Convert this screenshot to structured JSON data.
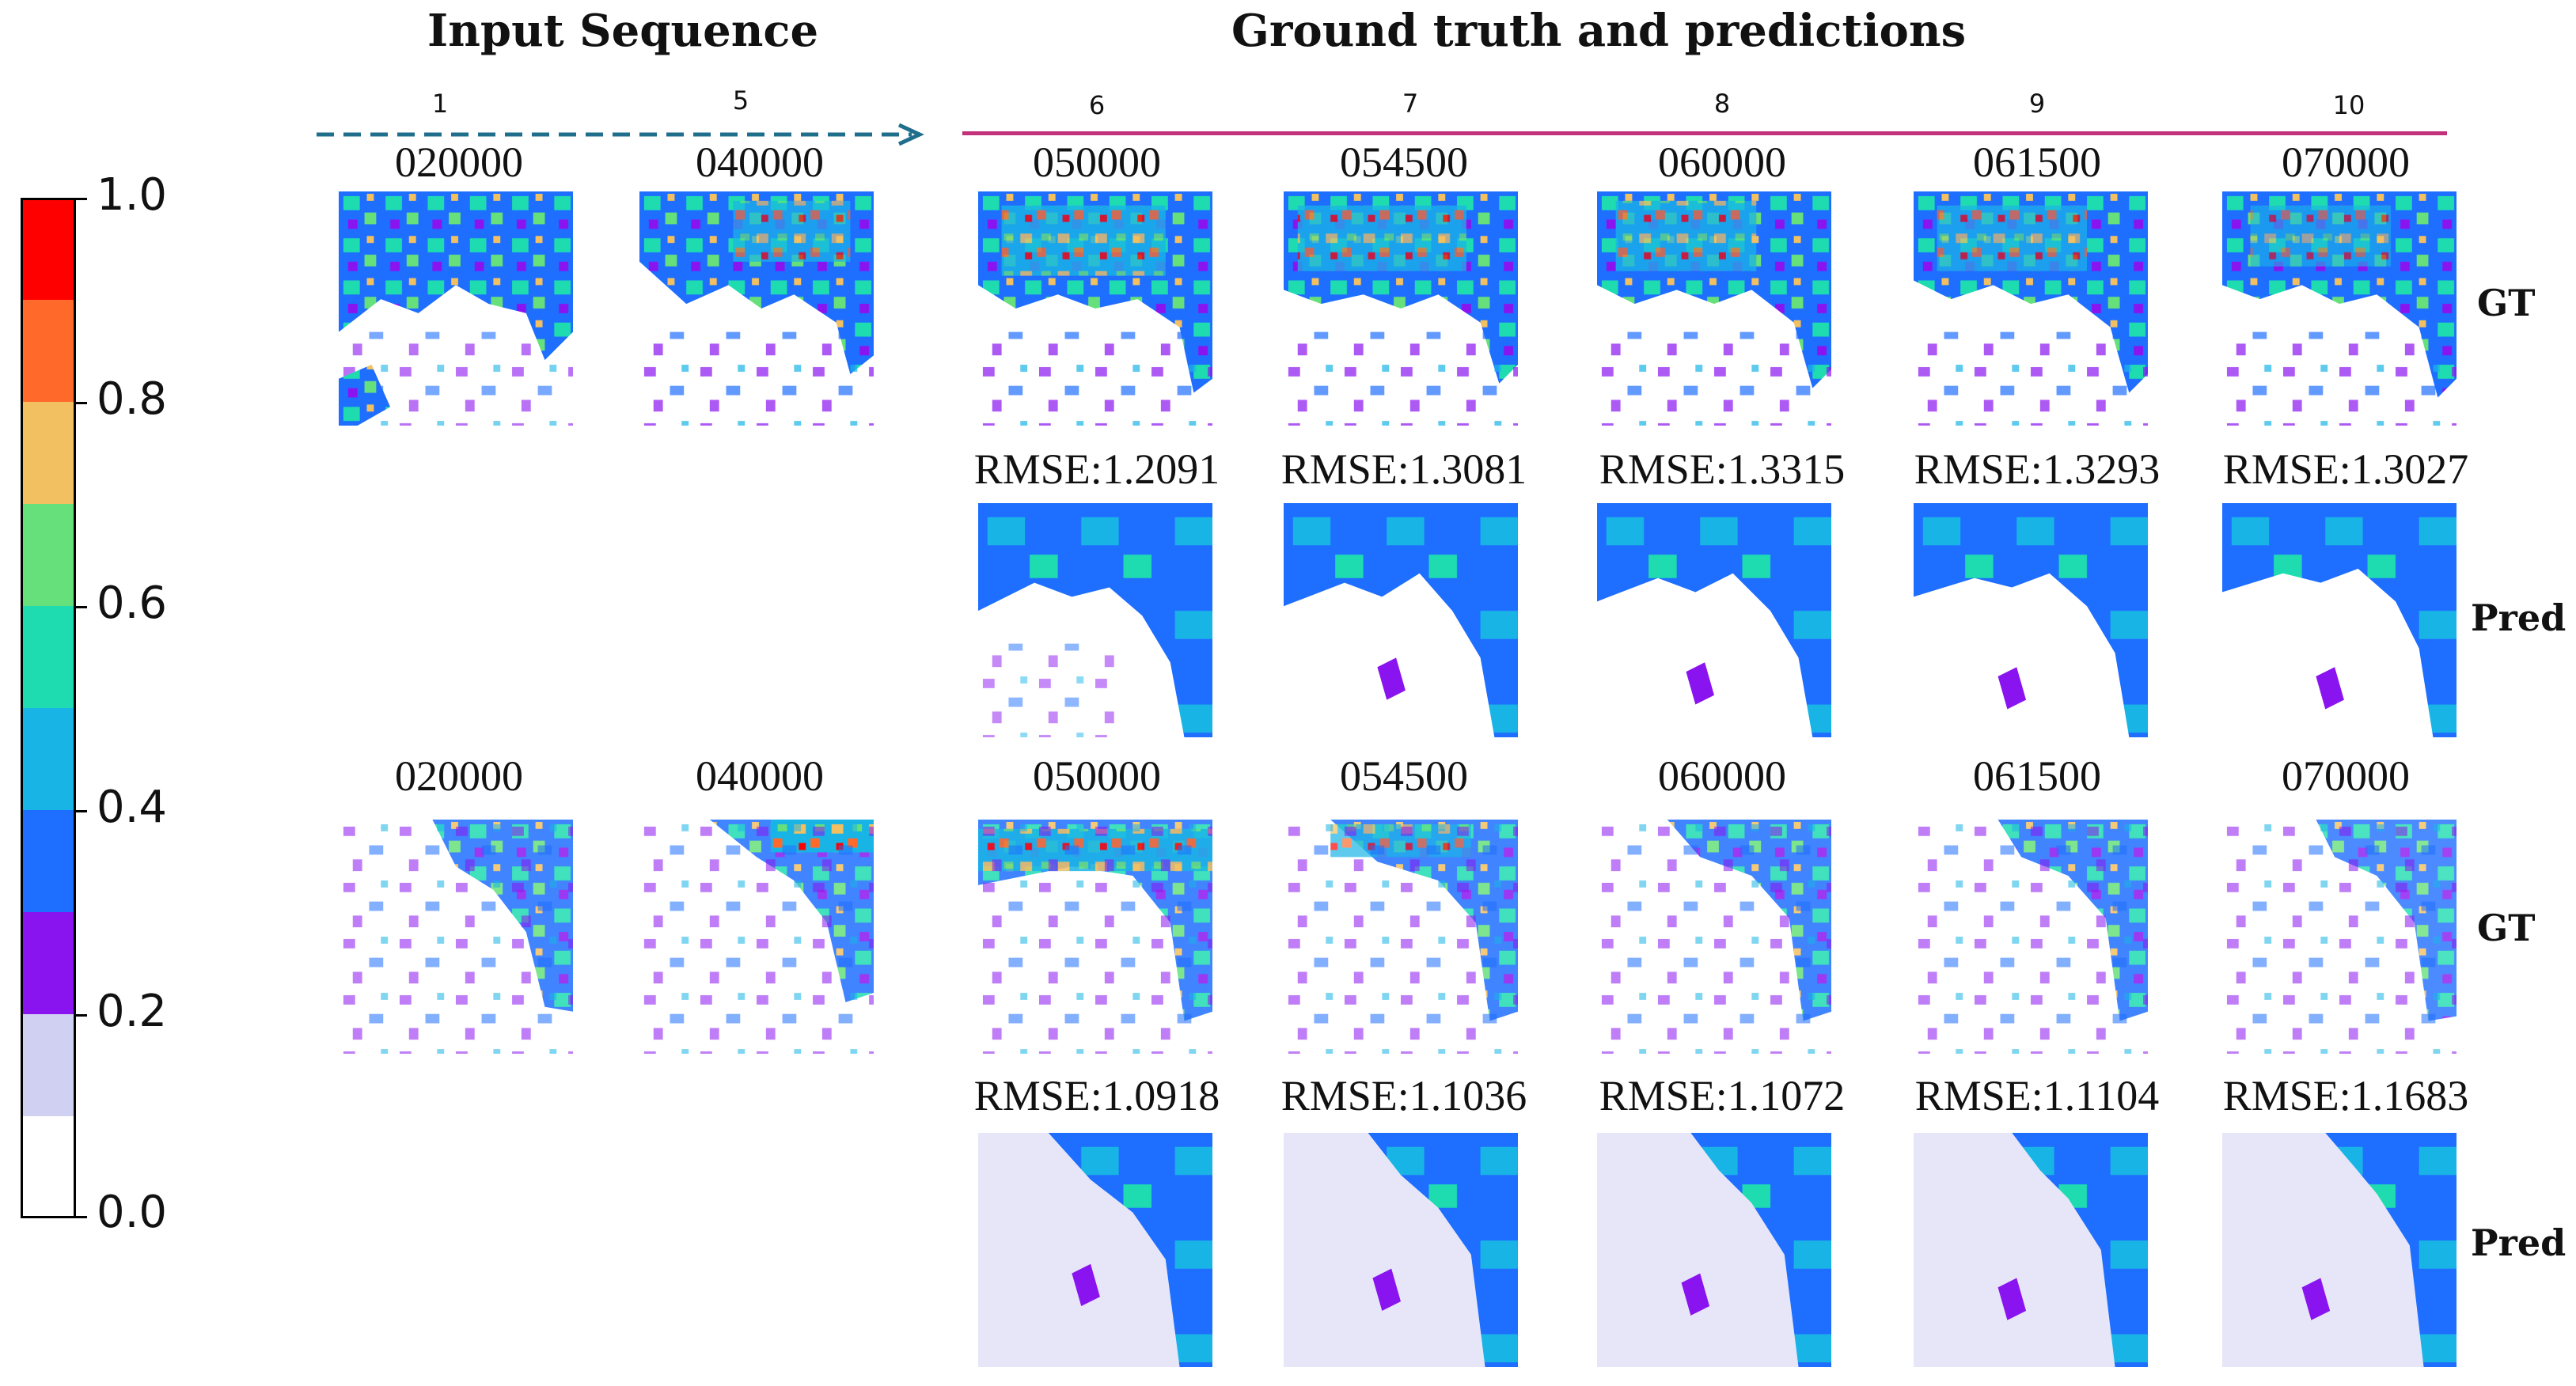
{
  "headers": {
    "input": "Input Sequence",
    "gt_pred": "Ground truth and predictions"
  },
  "steps": [
    "1",
    "5",
    "6",
    "7",
    "8",
    "9",
    "10"
  ],
  "colorbar": {
    "ticks": [
      "1.0",
      "0.8",
      "0.6",
      "0.4",
      "0.2",
      "0.0"
    ],
    "colors": [
      "#ff0000",
      "#ff6a2a",
      "#f2c060",
      "#66e07a",
      "#1edcb0",
      "#19b4e6",
      "#1e6eff",
      "#8a14f0",
      "#c8c8f0",
      "#ffffff"
    ]
  },
  "row_labels": {
    "gt": "GT",
    "pred": "Pred"
  },
  "sample1": {
    "input_times": [
      "020000",
      "040000"
    ],
    "output_times": [
      "050000",
      "054500",
      "060000",
      "061500",
      "070000"
    ],
    "rmse": [
      "RMSE:1.2091",
      "RMSE:1.3081",
      "RMSE:1.3315",
      "RMSE:1.3293",
      "RMSE:1.3027"
    ]
  },
  "sample2": {
    "input_times": [
      "020000",
      "040000"
    ],
    "output_times": [
      "050000",
      "054500",
      "060000",
      "061500",
      "070000"
    ],
    "rmse": [
      "RMSE:1.0918",
      "RMSE:1.1036",
      "RMSE:1.1072",
      "RMSE:1.1104",
      "RMSE:1.1683"
    ]
  }
}
